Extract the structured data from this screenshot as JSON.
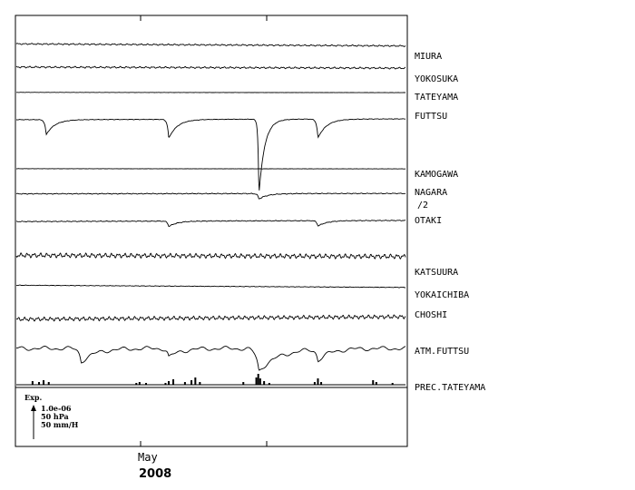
{
  "chart_data": {
    "type": "line",
    "title": "",
    "xlabel": "",
    "ylabel": "",
    "x_tick_labels": [
      {
        "label": "May"
      },
      {
        "label": ""
      }
    ],
    "year_label": "2008",
    "legend": {
      "title": "Exp.",
      "items": [
        "1.0e-06",
        "50 hPa",
        "50 mm/H"
      ]
    },
    "x_range_days": [
      0,
      60
    ],
    "grid": false,
    "series": [
      {
        "name": "MIURA",
        "scale_note": "",
        "base": 0.8,
        "slope": -1.8,
        "wiggle": 1.3,
        "freq": 1.9,
        "dips": []
      },
      {
        "name": "YOKOSUKA",
        "scale_note": "",
        "base": 1.0,
        "slope": -1.2,
        "wiggle": 2.0,
        "freq": 2.0,
        "dips": []
      },
      {
        "name": "TATEYAMA",
        "scale_note": "",
        "base": 0.3,
        "slope": -0.6,
        "wiggle": 0.5,
        "freq": 2.0,
        "dips": []
      },
      {
        "name": "FUTTSU",
        "scale_note": "",
        "base": 0.5,
        "slope": 0.4,
        "wiggle": 0.3,
        "freq": 2.0,
        "dips": [
          [
            4.6,
            8,
            0.6
          ],
          [
            23.5,
            10,
            0.6
          ],
          [
            37.4,
            40,
            0.4
          ],
          [
            46.5,
            10,
            0.6
          ]
        ]
      },
      {
        "name": "KAMOGAWA",
        "scale_note": "",
        "base": 0.0,
        "slope": -0.3,
        "wiggle": 0.4,
        "freq": 2.0,
        "dips": []
      },
      {
        "name": "NAGARA",
        "scale_note": "/2",
        "base": 0.6,
        "slope": 0.2,
        "wiggle": 0.5,
        "freq": 2.0,
        "dips": [
          [
            37.4,
            3,
            0.6
          ]
        ]
      },
      {
        "name": "OTAKI",
        "scale_note": "",
        "base": 0.6,
        "slope": 0.8,
        "wiggle": 0.6,
        "freq": 2.0,
        "dips": [
          [
            23.5,
            4,
            0.6
          ],
          [
            46.5,
            4,
            0.6
          ]
        ]
      },
      {
        "name": "KATSUURA",
        "scale_note": "",
        "base": 0.0,
        "slope": -0.8,
        "wiggle": 3.0,
        "freq": 2.0,
        "dips": []
      },
      {
        "name": "YOKAICHIBA",
        "scale_note": "",
        "base": 0.6,
        "slope": -1.6,
        "wiggle": 0.4,
        "freq": 2.0,
        "dips": []
      },
      {
        "name": "CHOSHI",
        "scale_note": "",
        "base": -0.5,
        "slope": 1.6,
        "wiggle": 2.6,
        "freq": 2.0,
        "dips": []
      },
      {
        "name": "ATM.FUTTSU",
        "scale_note": "",
        "base": 0.0,
        "slope": 0.0,
        "wiggle": 2.0,
        "freq": 0.5,
        "dips": [
          [
            10,
            6,
            1.0
          ],
          [
            23.5,
            4,
            0.8
          ],
          [
            37.4,
            10,
            1.4
          ],
          [
            46.5,
            5,
            0.8
          ]
        ]
      },
      {
        "name": "PREC.TATEYAMA",
        "scale_note": "",
        "bars": [
          [
            2.5,
            4
          ],
          [
            3.5,
            3
          ],
          [
            4.2,
            5
          ],
          [
            5.0,
            3
          ],
          [
            18.5,
            2
          ],
          [
            19.0,
            3
          ],
          [
            20.0,
            2
          ],
          [
            23.0,
            2
          ],
          [
            23.5,
            4
          ],
          [
            24.2,
            6
          ],
          [
            26.0,
            3
          ],
          [
            27.0,
            5
          ],
          [
            27.6,
            8
          ],
          [
            28.3,
            3
          ],
          [
            35.0,
            3
          ],
          [
            37.0,
            8
          ],
          [
            37.3,
            12
          ],
          [
            37.6,
            7
          ],
          [
            38.2,
            4
          ],
          [
            39.0,
            2
          ],
          [
            46.0,
            3
          ],
          [
            46.5,
            7
          ],
          [
            47.0,
            3
          ],
          [
            55.0,
            5
          ],
          [
            55.5,
            3
          ],
          [
            58.0,
            2
          ]
        ]
      }
    ]
  },
  "colors": {
    "line": "#000000",
    "background": "#ffffff"
  }
}
